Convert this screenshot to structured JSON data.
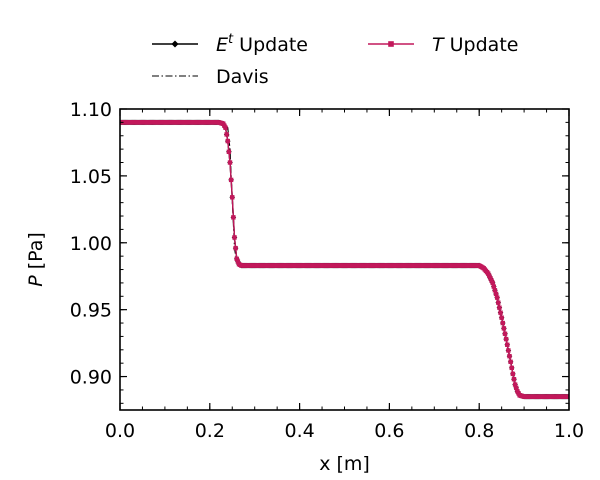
{
  "chart_data": {
    "type": "line",
    "title": "",
    "xlabel": "x [m]",
    "ylabel": "P [Pa]",
    "ylabel_italic_part": "P",
    "ylabel_unit_part": " [Pa]",
    "xlim": [
      0.0,
      1.0
    ],
    "ylim": [
      0.875,
      1.1
    ],
    "xticks": [
      0.0,
      0.2,
      0.4,
      0.6,
      0.8,
      1.0
    ],
    "xtick_labels": [
      "0.0",
      "0.2",
      "0.4",
      "0.6",
      "0.8",
      "1.0"
    ],
    "yticks": [
      0.9,
      0.95,
      1.0,
      1.05,
      1.1
    ],
    "ytick_labels": [
      "0.90",
      "0.95",
      "1.00",
      "1.05",
      "1.10"
    ],
    "grid": false,
    "legend_placement": "above plot",
    "series": [
      {
        "name": "E^t Update",
        "legend_main": "E",
        "legend_sup": "t",
        "legend_rest": " Update",
        "color": "#000000",
        "style": "solid-diamond-markers",
        "x": [
          0.0,
          0.22,
          0.23,
          0.235,
          0.24,
          0.245,
          0.25,
          0.255,
          0.26,
          0.265,
          0.27,
          0.28,
          0.3,
          0.5,
          0.7,
          0.8,
          0.81,
          0.82,
          0.83,
          0.84,
          0.85,
          0.86,
          0.87,
          0.875,
          0.88,
          0.885,
          0.89,
          0.9,
          1.0
        ],
        "y": [
          1.09,
          1.09,
          1.089,
          1.086,
          1.076,
          1.06,
          1.034,
          1.004,
          0.988,
          0.984,
          0.983,
          0.983,
          0.983,
          0.983,
          0.983,
          0.983,
          0.981,
          0.977,
          0.97,
          0.959,
          0.944,
          0.928,
          0.911,
          0.902,
          0.894,
          0.889,
          0.886,
          0.885,
          0.885
        ]
      },
      {
        "name": "Davis",
        "legend_main": "Davis",
        "color": "#000000",
        "style": "dashdot",
        "x": [
          0.0,
          0.23,
          0.24,
          0.245,
          0.25,
          0.255,
          0.26,
          0.27,
          0.3,
          0.5,
          0.7,
          0.8,
          0.81,
          0.82,
          0.83,
          0.84,
          0.85,
          0.86,
          0.87,
          0.875,
          0.88,
          0.885,
          0.89,
          0.9,
          1.0
        ],
        "y": [
          1.09,
          1.09,
          1.086,
          1.07,
          1.032,
          0.996,
          0.985,
          0.983,
          0.983,
          0.983,
          0.983,
          0.983,
          0.981,
          0.977,
          0.97,
          0.959,
          0.944,
          0.928,
          0.911,
          0.902,
          0.894,
          0.889,
          0.886,
          0.885,
          0.885
        ]
      },
      {
        "name": "T Update",
        "legend_main": "T",
        "legend_rest": " Update",
        "color": "#c2185b",
        "style": "solid-square-markers",
        "x": [
          0.0,
          0.22,
          0.23,
          0.235,
          0.24,
          0.245,
          0.25,
          0.255,
          0.26,
          0.265,
          0.27,
          0.28,
          0.3,
          0.5,
          0.7,
          0.8,
          0.81,
          0.82,
          0.83,
          0.84,
          0.85,
          0.86,
          0.87,
          0.875,
          0.88,
          0.885,
          0.89,
          0.9,
          1.0
        ],
        "y": [
          1.09,
          1.09,
          1.089,
          1.086,
          1.076,
          1.06,
          1.034,
          1.004,
          0.988,
          0.984,
          0.983,
          0.983,
          0.983,
          0.983,
          0.983,
          0.983,
          0.981,
          0.977,
          0.97,
          0.959,
          0.944,
          0.928,
          0.911,
          0.902,
          0.894,
          0.889,
          0.886,
          0.885,
          0.885
        ]
      }
    ]
  }
}
